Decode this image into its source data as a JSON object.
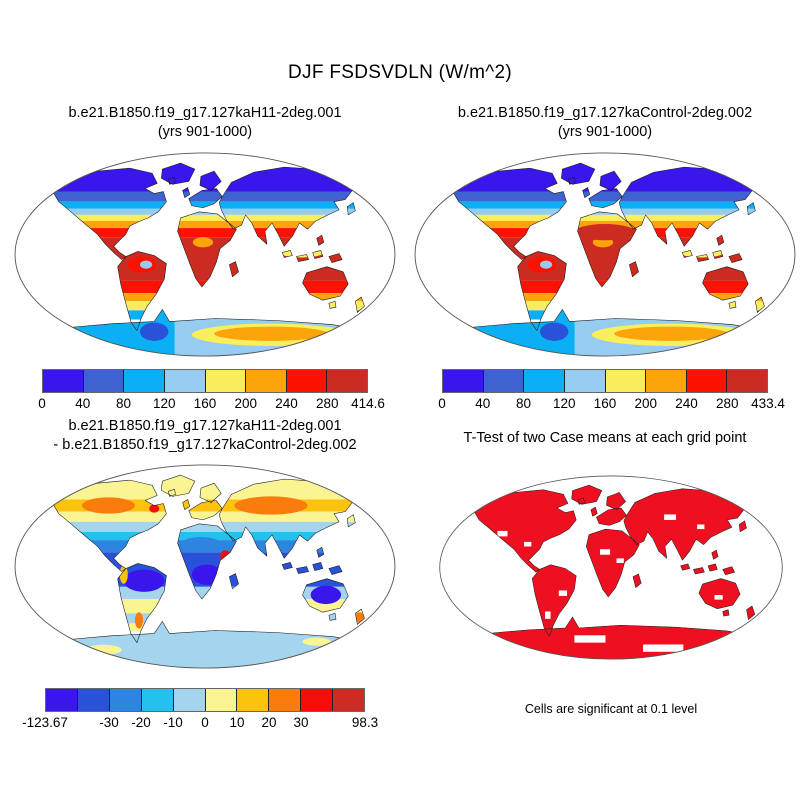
{
  "title": "DJF FSDSVDLN (W/m^2)",
  "panels": {
    "case1": {
      "title_line1": "b.e21.B1850.f19_g17.127kaH11-2deg.001",
      "title_line2": "(yrs 901-1000)"
    },
    "case2": {
      "title_line1": "b.e21.B1850.f19_g17.127kaControl-2deg.002",
      "title_line2": "(yrs 901-1000)"
    },
    "diff": {
      "title_line1": "b.e21.B1850.f19_g17.127kaH11-2deg.001",
      "title_line2": "- b.e21.B1850.f19_g17.127kaControl-2deg.002"
    },
    "ttest": {
      "title": "T-Test of two Case means at each grid point",
      "caption": "Cells are significant at 0.1 level"
    }
  },
  "colorbars": {
    "case1": {
      "colors": [
        "#3A16EC",
        "#3E63D0",
        "#0BAFF4",
        "#95CCEF",
        "#FAEE5E",
        "#FBA50B",
        "#FB1300",
        "#CB2B20"
      ],
      "ticks": [
        {
          "label": "0",
          "pos": 0
        },
        {
          "label": "40",
          "pos": 0.125
        },
        {
          "label": "80",
          "pos": 0.25
        },
        {
          "label": "120",
          "pos": 0.375
        },
        {
          "label": "160",
          "pos": 0.5
        },
        {
          "label": "200",
          "pos": 0.625
        },
        {
          "label": "240",
          "pos": 0.75
        },
        {
          "label": "280",
          "pos": 0.875
        },
        {
          "label": "414.6",
          "pos": 1
        }
      ]
    },
    "case2": {
      "colors": [
        "#3A16EC",
        "#3E63D0",
        "#0BAFF4",
        "#95CCEF",
        "#FAEE5E",
        "#FBA50B",
        "#FB1300",
        "#CB2B20"
      ],
      "ticks": [
        {
          "label": "0",
          "pos": 0
        },
        {
          "label": "40",
          "pos": 0.125
        },
        {
          "label": "80",
          "pos": 0.25
        },
        {
          "label": "120",
          "pos": 0.375
        },
        {
          "label": "160",
          "pos": 0.5
        },
        {
          "label": "200",
          "pos": 0.625
        },
        {
          "label": "240",
          "pos": 0.75
        },
        {
          "label": "280",
          "pos": 0.875
        },
        {
          "label": "433.4",
          "pos": 1
        }
      ]
    },
    "diff": {
      "colors": [
        "#3A16EC",
        "#2A52D8",
        "#2E85E0",
        "#24C0EE",
        "#A5D4EE",
        "#FAF493",
        "#FBC30D",
        "#F97C0C",
        "#F40D09",
        "#CC2C24"
      ],
      "ticks": [
        {
          "label": "-123.67",
          "pos": 0
        },
        {
          "label": "-30",
          "pos": 0.2
        },
        {
          "label": "-20",
          "pos": 0.3
        },
        {
          "label": "-10",
          "pos": 0.4
        },
        {
          "label": "0",
          "pos": 0.5
        },
        {
          "label": "10",
          "pos": 0.6
        },
        {
          "label": "20",
          "pos": 0.7
        },
        {
          "label": "30",
          "pos": 0.8
        },
        {
          "label": "98.3",
          "pos": 1
        }
      ]
    }
  },
  "chart_data": [
    {
      "type": "heatmap",
      "subtype": "filled-contour world map (Robinson projection, land only, ocean white)",
      "variable": "DJF FSDSVDLN (W/m^2)",
      "title": "b.e21.B1850.f19_g17.127kaH11-2deg.001 (yrs 901-1000)",
      "contour_levels": [
        0,
        40,
        80,
        120,
        160,
        200,
        240,
        280
      ],
      "min": 0,
      "max": 414.6,
      "palette": [
        "#3A16EC",
        "#3E63D0",
        "#0BAFF4",
        "#95CCEF",
        "#FAEE5E",
        "#FBA50B",
        "#FB1300",
        "#CB2B20"
      ],
      "pattern": "high values (red/dark red 240-414.6) over tropics and subtropics (Sahara, Africa, South America, Australia, South Asia); low values (blue/purple 0-80) over high northern latitudes; Antarctica 80-240 (light blue to orange)"
    },
    {
      "type": "heatmap",
      "subtype": "filled-contour world map (Robinson projection, land only, ocean white)",
      "variable": "DJF FSDSVDLN (W/m^2)",
      "title": "b.e21.B1850.f19_g17.127kaControl-2deg.002 (yrs 901-1000)",
      "contour_levels": [
        0,
        40,
        80,
        120,
        160,
        200,
        240,
        280
      ],
      "min": 0,
      "max": 433.4,
      "palette": [
        "#3A16EC",
        "#3E63D0",
        "#0BAFF4",
        "#95CCEF",
        "#FAEE5E",
        "#FBA50B",
        "#FB1300",
        "#CB2B20"
      ],
      "pattern": "nearly identical zonal distribution to case 1, slightly more dark red over Sahara and tropics"
    },
    {
      "type": "heatmap",
      "subtype": "filled-contour difference map (Robinson projection, land only, ocean white)",
      "variable": "DJF FSDSVDLN difference (W/m^2)",
      "title": "b.e21.B1850.f19_g17.127kaH11-2deg.001 - b.e21.B1850.f19_g17.127kaControl-2deg.002",
      "contour_levels": [
        -30,
        -20,
        -10,
        0,
        10,
        20,
        30
      ],
      "min": -123.67,
      "max": 98.3,
      "palette": [
        "#3A16EC",
        "#2A52D8",
        "#2E85E0",
        "#24C0EE",
        "#A5D4EE",
        "#FAF493",
        "#FBC30D",
        "#F97C0C",
        "#F40D09",
        "#CC2C24"
      ],
      "pattern": "negative (blue/purple) over tropics: Amazon, central Africa, Sahara, Southeast Asia, Australia; positive (yellow/orange) over northern mid-high latitudes: Canada, Siberia; light blue Antarctica; isolated red spots East Africa and coasts"
    },
    {
      "type": "heatmap",
      "subtype": "significance mask map (Robinson projection, land only, ocean white)",
      "title": "T-Test of two Case means at each grid point",
      "note": "Cells are significant at 0.1 level",
      "significant_color": "#EE1020",
      "pattern": "almost all land cells significant (solid red) with scattered small non-significant white gaps"
    }
  ]
}
